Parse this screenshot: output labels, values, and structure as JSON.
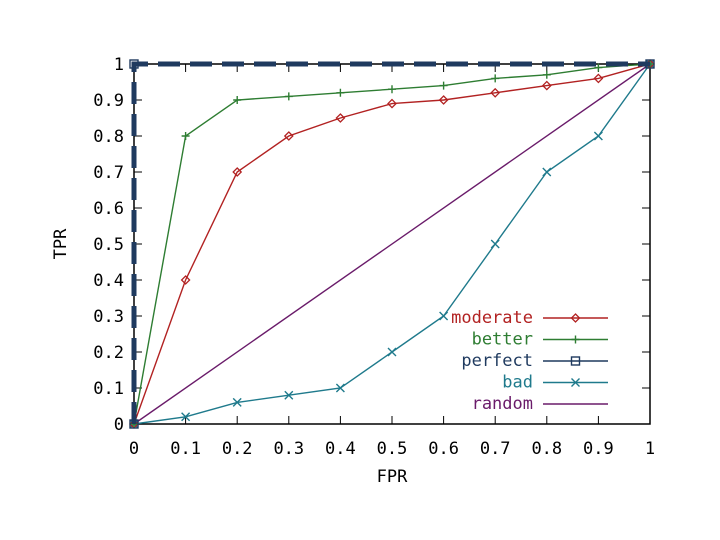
{
  "chart_data": {
    "type": "line",
    "xlabel": "FPR",
    "ylabel": "TPR",
    "xlim": [
      0,
      1
    ],
    "ylim": [
      0,
      1
    ],
    "x_ticks": [
      "0",
      "0.1",
      "0.2",
      "0.3",
      "0.4",
      "0.5",
      "0.6",
      "0.7",
      "0.8",
      "0.9",
      "1"
    ],
    "y_ticks": [
      "0",
      "0.1",
      "0.2",
      "0.3",
      "0.4",
      "0.5",
      "0.6",
      "0.7",
      "0.8",
      "0.9",
      "1"
    ],
    "grid": false,
    "legend_position": "bottom-right",
    "series": [
      {
        "name": "moderate",
        "color": "#b22222",
        "marker": "diamond",
        "x": [
          0,
          0.1,
          0.2,
          0.3,
          0.4,
          0.5,
          0.6,
          0.7,
          0.8,
          0.9,
          1
        ],
        "y": [
          0,
          0.4,
          0.7,
          0.8,
          0.85,
          0.89,
          0.9,
          0.92,
          0.94,
          0.96,
          1
        ]
      },
      {
        "name": "better",
        "color": "#2e7d32",
        "marker": "plus",
        "x": [
          0,
          0.1,
          0.2,
          0.3,
          0.4,
          0.5,
          0.6,
          0.7,
          0.8,
          0.9,
          1
        ],
        "y": [
          0,
          0.8,
          0.9,
          0.91,
          0.92,
          0.93,
          0.94,
          0.96,
          0.97,
          0.99,
          1
        ]
      },
      {
        "name": "perfect",
        "color": "#1f3a5f",
        "marker": "square",
        "x": [
          0,
          0,
          1
        ],
        "y": [
          0,
          1,
          1
        ]
      },
      {
        "name": "bad",
        "color": "#1f7a8c",
        "marker": "cross",
        "x": [
          0,
          0.1,
          0.2,
          0.3,
          0.4,
          0.5,
          0.6,
          0.7,
          0.8,
          0.9,
          1
        ],
        "y": [
          0,
          0.02,
          0.06,
          0.08,
          0.1,
          0.2,
          0.3,
          0.5,
          0.7,
          0.8,
          1
        ]
      },
      {
        "name": "random",
        "color": "#6a1b6a",
        "marker": "none",
        "x": [
          0,
          1
        ],
        "y": [
          0,
          1
        ]
      }
    ]
  }
}
